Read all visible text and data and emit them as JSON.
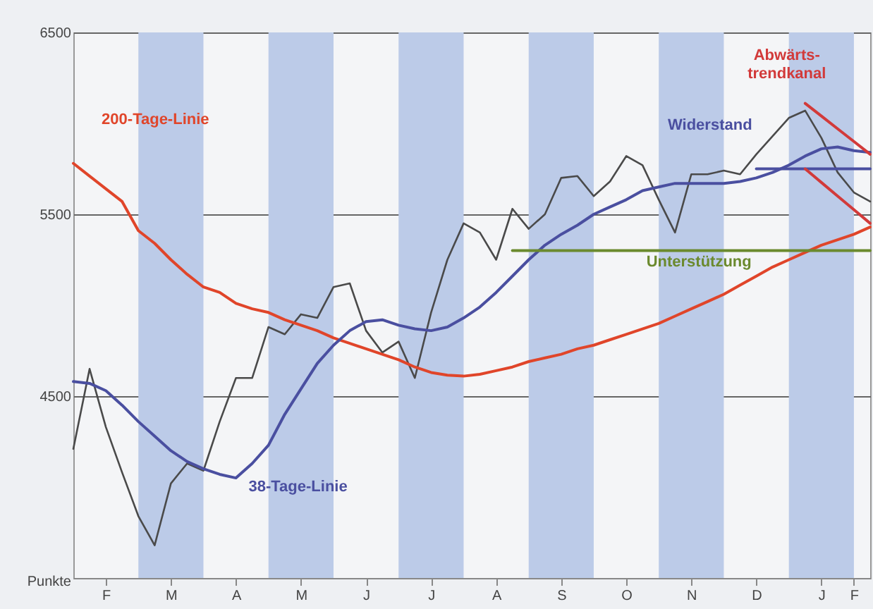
{
  "chart_data": {
    "type": "line",
    "ylabel": "Punkte",
    "categories": [
      null,
      null,
      "F",
      null,
      null,
      null,
      "M",
      null,
      null,
      null,
      "A",
      null,
      null,
      null,
      "M",
      null,
      null,
      null,
      "J",
      null,
      null,
      null,
      "J",
      null,
      null,
      null,
      "A",
      null,
      null,
      null,
      "S",
      null,
      null,
      null,
      "O",
      null,
      null,
      null,
      "N",
      null,
      null,
      null,
      "D",
      null,
      null,
      null,
      "J",
      null,
      "F",
      null
    ],
    "ylim": [
      3500,
      6500
    ],
    "yticks": [
      4500,
      5500,
      6500
    ],
    "grid": "y",
    "legend": false,
    "marker": "none",
    "line_style": "solid",
    "series": [
      {
        "color": "#4a4a4a",
        "values": [
          4210,
          4650,
          4330,
          4080,
          3840,
          3680,
          4020,
          4130,
          4090,
          4360,
          4600,
          4600,
          4880,
          4840,
          4950,
          4930,
          5100,
          5120,
          4860,
          4740,
          4800,
          4600,
          4960,
          5250,
          5450,
          5400,
          5250,
          5530,
          5420,
          5500,
          5700,
          5710,
          5600,
          5680,
          5820,
          5770,
          5580,
          5400,
          5720,
          5720,
          5740,
          5720,
          5830,
          5930,
          6030,
          6070,
          5920,
          5730,
          5620,
          5570
        ]
      },
      {
        "name": "200-Tage-Linie",
        "color": "#e0452a",
        "values": [
          5780,
          5710,
          5640,
          5570,
          5410,
          5340,
          5250,
          5170,
          5100,
          5070,
          5010,
          4980,
          4960,
          4920,
          4890,
          4860,
          4820,
          4790,
          4760,
          4730,
          4700,
          4660,
          4630,
          4615,
          4610,
          4620,
          4640,
          4660,
          4690,
          4710,
          4730,
          4760,
          4780,
          4810,
          4840,
          4870,
          4900,
          4940,
          4980,
          5020,
          5060,
          5110,
          5160,
          5210,
          5250,
          5290,
          5330,
          5360,
          5390,
          5430
        ]
      },
      {
        "name": "38-Tage-Linie",
        "color": "#4a4fa0",
        "values": [
          4580,
          4570,
          4530,
          4450,
          4360,
          4280,
          4200,
          4140,
          4100,
          4070,
          4050,
          4130,
          4230,
          4400,
          4540,
          4680,
          4780,
          4860,
          4910,
          4920,
          4890,
          4870,
          4860,
          4880,
          4930,
          4990,
          5070,
          5160,
          5250,
          5330,
          5390,
          5440,
          5500,
          5540,
          5580,
          5630,
          5650,
          5670,
          5670,
          5670,
          5670,
          5680,
          5700,
          5730,
          5770,
          5820,
          5860,
          5870,
          5850,
          5840
        ]
      },
      {
        "name": "Widerstand",
        "color": "#4a4fa0",
        "values": [
          null,
          null,
          null,
          null,
          null,
          null,
          null,
          null,
          null,
          null,
          null,
          null,
          null,
          null,
          null,
          null,
          null,
          null,
          null,
          null,
          null,
          null,
          null,
          null,
          null,
          null,
          null,
          null,
          null,
          null,
          null,
          null,
          null,
          null,
          null,
          null,
          null,
          null,
          null,
          null,
          null,
          null,
          5750,
          5750,
          5750,
          5750,
          5750,
          5750,
          5750,
          5750
        ]
      },
      {
        "name": "Unterstützung",
        "color": "#6b8a2e",
        "values": [
          null,
          null,
          null,
          null,
          null,
          null,
          null,
          null,
          null,
          null,
          null,
          null,
          null,
          null,
          null,
          null,
          null,
          null,
          null,
          null,
          null,
          null,
          null,
          null,
          null,
          null,
          null,
          5300,
          5300,
          5300,
          5300,
          5300,
          5300,
          5300,
          5300,
          5300,
          5300,
          5300,
          5300,
          5300,
          5300,
          5300,
          5300,
          5300,
          5300,
          5300,
          5300,
          5300,
          5300,
          5300
        ]
      },
      {
        "name": "Abwärts-\ntrendkanal",
        "color": "#d23a3a",
        "values": [
          null,
          null,
          null,
          null,
          null,
          null,
          null,
          null,
          null,
          null,
          null,
          null,
          null,
          null,
          null,
          null,
          null,
          null,
          null,
          null,
          null,
          null,
          null,
          null,
          null,
          null,
          null,
          null,
          null,
          null,
          null,
          null,
          null,
          null,
          null,
          null,
          null,
          null,
          null,
          null,
          null,
          null,
          null,
          null,
          null,
          6110,
          6040,
          5970,
          5900,
          5830
        ]
      },
      {
        "color": "#d23a3a",
        "values": [
          null,
          null,
          null,
          null,
          null,
          null,
          null,
          null,
          null,
          null,
          null,
          null,
          null,
          null,
          null,
          null,
          null,
          null,
          null,
          null,
          null,
          null,
          null,
          null,
          null,
          null,
          null,
          null,
          null,
          null,
          null,
          null,
          null,
          null,
          null,
          null,
          null,
          null,
          null,
          null,
          null,
          null,
          null,
          null,
          null,
          5750,
          5675,
          5600,
          5525,
          5450
        ]
      }
    ]
  }
}
